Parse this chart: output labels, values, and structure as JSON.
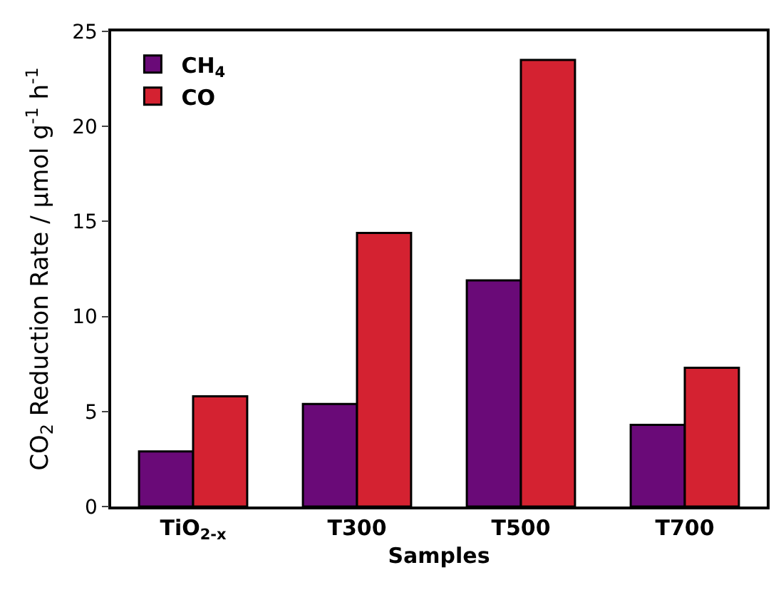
{
  "chart_data": {
    "type": "bar",
    "xlabel": "Samples",
    "ylabel": "CO$_{2}$ Reduction Rate / μmol g$^{-1}$ h$^{-1}$",
    "categories": [
      "TiO$_{2-x}$",
      "T300",
      "T500",
      "T700"
    ],
    "series": [
      {
        "name": "CH$_{4}$",
        "color": "#6a0a78",
        "values": [
          2.9,
          5.4,
          11.9,
          4.3
        ]
      },
      {
        "name": "CO",
        "color": "#d42231",
        "values": [
          5.8,
          14.4,
          23.5,
          7.3
        ]
      }
    ],
    "ylim": [
      0,
      25
    ],
    "yticks": [
      0,
      5,
      10,
      15,
      20,
      25
    ],
    "grid": false,
    "legend": "top left"
  }
}
